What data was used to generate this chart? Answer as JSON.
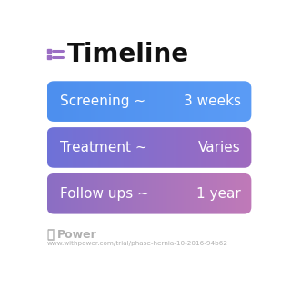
{
  "title": "Timeline",
  "background_color": "#ffffff",
  "rows": [
    {
      "label": "Screening ~",
      "value": "3 weeks",
      "color_left": "#4d8fee",
      "color_right": "#5b9cf6"
    },
    {
      "label": "Treatment ~",
      "value": "Varies",
      "color_left": "#6e72d8",
      "color_right": "#a06abf"
    },
    {
      "label": "Follow ups ~",
      "value": "1 year",
      "color_left": "#8b6ec4",
      "color_right": "#c07ab8"
    }
  ],
  "footer_text": "Power",
  "footer_url": "www.withpower.com/trial/phase-hernia-10-2016-94b62",
  "icon_color": "#9b6ec4",
  "footer_color": "#b0b0b0",
  "title_fontsize": 20,
  "label_fontsize": 11,
  "value_fontsize": 11
}
